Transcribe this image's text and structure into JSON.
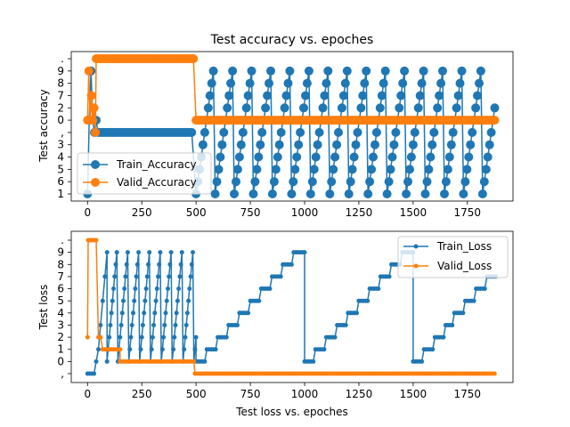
{
  "chart_data": [
    {
      "type": "line",
      "title": "Test accuracy vs. epoches",
      "xlabel": "",
      "ylabel": "Test accuracy",
      "xlim": [
        -75,
        1960
      ],
      "x_ticks": [
        0,
        250,
        500,
        750,
        1000,
        1250,
        1500,
        1750
      ],
      "y_categories": [
        "1",
        "6",
        "5",
        "4",
        "3",
        ",",
        "0",
        "2",
        "7",
        "8",
        "9",
        "."
      ],
      "legend_position": "lower-left",
      "series": [
        {
          "name": "Train_Accuracy",
          "color": "#1f77b4",
          "marker": "large-dot",
          "segments": [
            {
              "x": [
                0,
                8,
                16,
                24,
                32,
                40,
                48
              ],
              "y": [
                "1",
                "0",
                "9",
                "0",
                ",",
                "0",
                ","
              ]
            },
            {
              "x_start": 56,
              "x_end": 480,
              "step": 8,
              "y_constant": ","
            },
            {
              "pattern": "sawtooth",
              "x_start": 500,
              "x_end": 1880,
              "period_points": 11,
              "step": 8,
              "sequence": [
                "1",
                "6",
                "5",
                "4",
                "3",
                ",",
                "0",
                "2",
                "7",
                "8",
                "9"
              ]
            }
          ]
        },
        {
          "name": "Valid_Accuracy",
          "color": "#ff7f0e",
          "marker": "large-dot",
          "segments": [
            {
              "x": [
                0,
                6,
                12,
                18,
                24,
                30,
                36
              ],
              "y": [
                "0",
                "9",
                "0",
                "7",
                "0",
                "2",
                ","
              ]
            },
            {
              "x_start": 40,
              "x_end": 490,
              "step": 8,
              "y_constant": "."
            },
            {
              "x_start": 500,
              "x_end": 1880,
              "step": 8,
              "y_constant": "0"
            }
          ]
        }
      ]
    },
    {
      "type": "line",
      "title": "",
      "xlabel": "Test loss vs. epoches",
      "ylabel": "Test loss",
      "xlim": [
        -75,
        1960
      ],
      "x_ticks": [
        0,
        250,
        500,
        750,
        1000,
        1250,
        1500,
        1750
      ],
      "y_categories": [
        ",",
        "0",
        "1",
        "2",
        "3",
        "4",
        "5",
        "6",
        "7",
        "8",
        "9",
        "."
      ],
      "legend_position": "top-right",
      "series": [
        {
          "name": "Train_Loss",
          "color": "#1f77b4",
          "marker": "small-dot",
          "segments": [
            {
              "x": [
                0,
                10,
                20,
                30,
                40,
                50,
                60,
                70,
                80,
                90
              ],
              "y": [
                ",",
                ",",
                ",",
                ",",
                "0",
                "1",
                "3",
                "5",
                "7",
                "9"
              ]
            },
            {
              "pattern": "sawtooth",
              "x_start": 90,
              "x_end": 500,
              "cycle_length": 50,
              "sequence": [
                "0",
                "1",
                "2",
                "3",
                "4",
                "5",
                "6",
                "7",
                "8",
                "9"
              ]
            },
            {
              "pattern": "staircase",
              "x_start": 500,
              "x_end": 1000,
              "sequence": [
                "0",
                "1",
                "2",
                "3",
                "4",
                "5",
                "6",
                "7",
                "8",
                "9"
              ]
            },
            {
              "pattern": "staircase",
              "x_start": 1000,
              "x_end": 1500,
              "sequence": [
                "0",
                "1",
                "2",
                "3",
                "4",
                "5",
                "6",
                "7",
                "8",
                "9"
              ]
            },
            {
              "pattern": "staircase",
              "x_start": 1500,
              "x_end": 1880,
              "sequence": [
                "0",
                "1",
                "2",
                "3",
                "4",
                "5",
                "6",
                "7"
              ]
            }
          ]
        },
        {
          "name": "Valid_Loss",
          "color": "#ff7f0e",
          "marker": "small-dot",
          "segments": [
            {
              "x": [
                0,
                3,
                6,
                10,
                20,
                30,
                40
              ],
              "y": [
                "2",
                ".",
                ".",
                ".",
                ".",
                ".",
                "."
              ]
            },
            {
              "x": [
                50,
                60,
                70,
                80,
                90,
                100,
                110,
                120,
                130,
                140,
                150
              ],
              "y": [
                "2",
                "2",
                "1",
                "1",
                "1",
                "1",
                "1",
                "1",
                "1",
                "1",
                "1"
              ]
            },
            {
              "x_start": 150,
              "x_end": 490,
              "step": 10,
              "y_constant": "0"
            },
            {
              "x_start": 495,
              "x_end": 1880,
              "step": 10,
              "y_constant": ","
            }
          ]
        }
      ]
    }
  ]
}
